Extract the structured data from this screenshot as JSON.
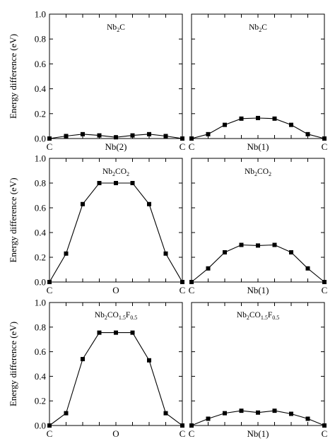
{
  "chart_data": [
    {
      "type": "line",
      "title": "Nb₂C",
      "title_parts": [
        {
          "t": "Nb"
        },
        {
          "t": "2",
          "sub": true
        },
        {
          "t": "C"
        }
      ],
      "xlabel": "Nb(2)",
      "x_tick_labels": [
        {
          "at": 0,
          "label": "C"
        },
        {
          "at": 4,
          "label": "Nb(2)"
        },
        {
          "at": 8,
          "label": "C"
        }
      ],
      "ylabel": "Energy difference (eV)",
      "ylim": [
        0,
        1.0
      ],
      "y_ticks": [
        "0.0",
        "0.2",
        "0.4",
        "0.6",
        "0.8",
        "1.0"
      ],
      "series": [
        {
          "x": [
            0,
            1,
            2,
            3,
            4,
            5,
            6,
            7,
            8
          ],
          "values": [
            0.0,
            0.02,
            0.035,
            0.025,
            0.01,
            0.025,
            0.035,
            0.02,
            0.0
          ]
        }
      ]
    },
    {
      "type": "line",
      "title": "Nb₂C",
      "title_parts": [
        {
          "t": "Nb"
        },
        {
          "t": "2",
          "sub": true
        },
        {
          "t": "C"
        }
      ],
      "xlabel": "Nb(1)",
      "x_tick_labels": [
        {
          "at": 0,
          "label": "C"
        },
        {
          "at": 4,
          "label": "Nb(1)"
        },
        {
          "at": 8,
          "label": "C"
        }
      ],
      "ylabel": "",
      "ylim": [
        0,
        1.0
      ],
      "y_ticks": [],
      "series": [
        {
          "x": [
            0,
            1,
            2,
            3,
            4,
            5,
            6,
            7,
            8
          ],
          "values": [
            0.0,
            0.035,
            0.11,
            0.16,
            0.165,
            0.16,
            0.11,
            0.035,
            0.0
          ]
        }
      ]
    },
    {
      "type": "line",
      "title": "Nb₂CO₂",
      "title_parts": [
        {
          "t": "Nb"
        },
        {
          "t": "2",
          "sub": true
        },
        {
          "t": "CO"
        },
        {
          "t": "2",
          "sub": true
        }
      ],
      "xlabel": "O",
      "x_tick_labels": [
        {
          "at": 0,
          "label": "C"
        },
        {
          "at": 4,
          "label": "O"
        },
        {
          "at": 8,
          "label": "C"
        }
      ],
      "ylabel": "Energy difference (eV)",
      "ylim": [
        0,
        1.0
      ],
      "y_ticks": [
        "0.0",
        "0.2",
        "0.4",
        "0.6",
        "0.8",
        "1.0"
      ],
      "series": [
        {
          "x": [
            0,
            1,
            2,
            3,
            4,
            5,
            6,
            7,
            8
          ],
          "values": [
            0.0,
            0.23,
            0.63,
            0.8,
            0.8,
            0.8,
            0.63,
            0.23,
            0.0
          ]
        }
      ]
    },
    {
      "type": "line",
      "title": "Nb₂CO₂",
      "title_parts": [
        {
          "t": "Nb"
        },
        {
          "t": "2",
          "sub": true
        },
        {
          "t": "CO"
        },
        {
          "t": "2",
          "sub": true
        }
      ],
      "xlabel": "Nb(1)",
      "x_tick_labels": [
        {
          "at": 0,
          "label": "C"
        },
        {
          "at": 4,
          "label": "Nb(1)"
        },
        {
          "at": 8,
          "label": "C"
        }
      ],
      "ylabel": "",
      "ylim": [
        0,
        1.0
      ],
      "y_ticks": [],
      "series": [
        {
          "x": [
            0,
            1,
            2,
            3,
            4,
            5,
            6,
            7,
            8
          ],
          "values": [
            0.0,
            0.11,
            0.24,
            0.3,
            0.295,
            0.3,
            0.24,
            0.11,
            0.0
          ]
        }
      ]
    },
    {
      "type": "line",
      "title": "Nb₂CO₁.₅F₀.₅",
      "title_parts": [
        {
          "t": "Nb"
        },
        {
          "t": "2",
          "sub": true
        },
        {
          "t": "CO"
        },
        {
          "t": "1.5",
          "sub": true
        },
        {
          "t": "F"
        },
        {
          "t": "0.5",
          "sub": true
        }
      ],
      "xlabel": "O",
      "x_tick_labels": [
        {
          "at": 0,
          "label": "C"
        },
        {
          "at": 4,
          "label": "O"
        },
        {
          "at": 8,
          "label": "C"
        }
      ],
      "ylabel": "Energy difference (eV)",
      "ylim": [
        0,
        1.0
      ],
      "y_ticks": [
        "0.0",
        "0.2",
        "0.4",
        "0.6",
        "0.8",
        "1.0"
      ],
      "series": [
        {
          "x": [
            0,
            1,
            2,
            3,
            4,
            5,
            6,
            7,
            8
          ],
          "values": [
            0.0,
            0.1,
            0.54,
            0.755,
            0.755,
            0.755,
            0.53,
            0.1,
            0.0
          ]
        }
      ]
    },
    {
      "type": "line",
      "title": "Nb₂CO₁.₅F₀.₅",
      "title_parts": [
        {
          "t": "Nb"
        },
        {
          "t": "2",
          "sub": true
        },
        {
          "t": "CO"
        },
        {
          "t": "1.5",
          "sub": true
        },
        {
          "t": "F"
        },
        {
          "t": "0.5",
          "sub": true
        }
      ],
      "xlabel": "Nb(1)",
      "x_tick_labels": [
        {
          "at": 0,
          "label": "C"
        },
        {
          "at": 4,
          "label": "Nb(1)"
        },
        {
          "at": 8,
          "label": "C"
        }
      ],
      "ylabel": "",
      "ylim": [
        0,
        1.0
      ],
      "y_ticks": [],
      "series": [
        {
          "x": [
            0,
            1,
            2,
            3,
            4,
            5,
            6,
            7,
            8
          ],
          "values": [
            0.0,
            0.055,
            0.1,
            0.12,
            0.105,
            0.12,
            0.095,
            0.055,
            0.0
          ]
        }
      ]
    }
  ]
}
